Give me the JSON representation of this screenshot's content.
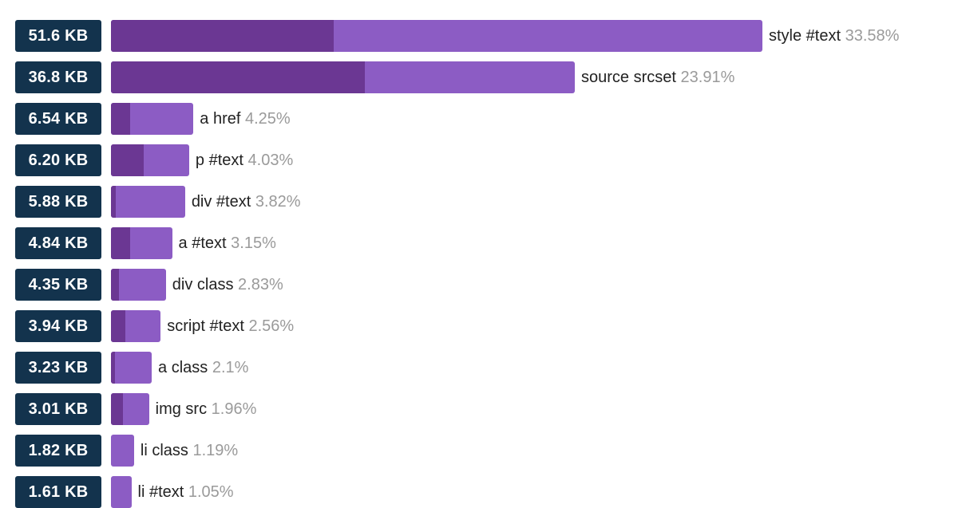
{
  "colors": {
    "badge": "#13334d",
    "bar_light": "#8c5cc4",
    "bar_dark": "#6b3793",
    "name_text": "#222222",
    "pct_text": "#9a9a9a"
  },
  "chart_data": {
    "type": "bar",
    "orientation": "horizontal",
    "title": "",
    "xlabel": "",
    "ylabel": "",
    "grid": false,
    "series": [
      {
        "name": "",
        "values": [
          33.58,
          23.91,
          4.25,
          4.03,
          3.82,
          3.15,
          2.83,
          2.56,
          2.1,
          1.96,
          1.19,
          1.05
        ]
      },
      {
        "name": "",
        "values": [
          11.5,
          13.1,
          1.0,
          1.7,
          0.25,
          1.0,
          0.4,
          0.75,
          0.2,
          0.6,
          0.0,
          0.0
        ]
      }
    ],
    "rows": [
      {
        "size": "51.6 KB",
        "name": "style #text",
        "pct": "33.58%",
        "share": 33.58,
        "dark_share": 11.5
      },
      {
        "size": "36.8 KB",
        "name": "source srcset",
        "pct": "23.91%",
        "share": 23.91,
        "dark_share": 13.1
      },
      {
        "size": "6.54 KB",
        "name": "a href",
        "pct": "4.25%",
        "share": 4.25,
        "dark_share": 1.0
      },
      {
        "size": "6.20 KB",
        "name": "p #text",
        "pct": "4.03%",
        "share": 4.03,
        "dark_share": 1.7
      },
      {
        "size": "5.88 KB",
        "name": "div #text",
        "pct": "3.82%",
        "share": 3.82,
        "dark_share": 0.25
      },
      {
        "size": "4.84 KB",
        "name": "a #text",
        "pct": "3.15%",
        "share": 3.15,
        "dark_share": 1.0
      },
      {
        "size": "4.35 KB",
        "name": "div class",
        "pct": "2.83%",
        "share": 2.83,
        "dark_share": 0.4
      },
      {
        "size": "3.94 KB",
        "name": "script #text",
        "pct": "2.56%",
        "share": 2.56,
        "dark_share": 0.75
      },
      {
        "size": "3.23 KB",
        "name": "a class",
        "pct": "2.1%",
        "share": 2.1,
        "dark_share": 0.2
      },
      {
        "size": "3.01 KB",
        "name": "img src",
        "pct": "1.96%",
        "share": 1.96,
        "dark_share": 0.6
      },
      {
        "size": "1.82 KB",
        "name": "li class",
        "pct": "1.19%",
        "share": 1.19,
        "dark_share": 0.0
      },
      {
        "size": "1.61 KB",
        "name": "li #text",
        "pct": "1.05%",
        "share": 1.05,
        "dark_share": 0.0
      }
    ]
  }
}
